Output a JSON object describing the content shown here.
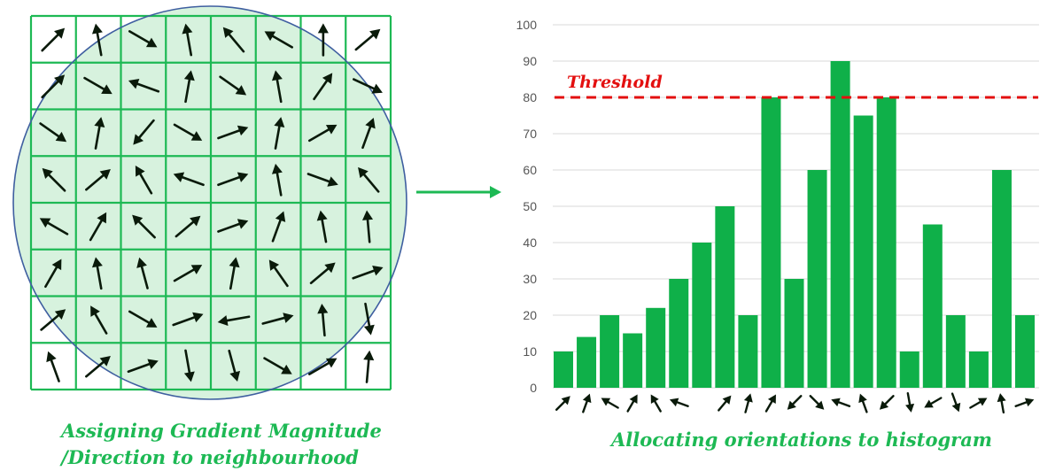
{
  "left_caption_line1": "Assigning Gradient Magnitude",
  "left_caption_line2": "/Direction to neighbourhood",
  "right_caption": "Allocating orientations to histogram",
  "colors": {
    "grid_green": "#1db954",
    "region_fill": "#d7f2de",
    "circle_outline": "#3f5fa0",
    "bar_green": "#0fb049",
    "threshold_red": "#e30f0f",
    "arrow_dark": "#0a1a0a",
    "axis_text": "#555555",
    "gridline": "#d9d9d9"
  },
  "neighbourhood": {
    "rows": 8,
    "cols": 8,
    "arrow_angles_deg": [
      [
        45,
        100,
        -30,
        100,
        130,
        150,
        90,
        40
      ],
      [
        45,
        -30,
        160,
        80,
        -35,
        100,
        55,
        -25
      ],
      [
        -35,
        80,
        230,
        -30,
        20,
        80,
        30,
        70
      ],
      [
        135,
        40,
        120,
        160,
        20,
        100,
        -20,
        130
      ],
      [
        150,
        60,
        135,
        40,
        20,
        70,
        100,
        95
      ],
      [
        60,
        100,
        105,
        30,
        80,
        125,
        40,
        20
      ],
      [
        40,
        120,
        -30,
        20,
        190,
        15,
        95,
        -80
      ],
      [
        110,
        40,
        20,
        -80,
        -75,
        -30,
        30,
        85
      ]
    ]
  },
  "chart_data": {
    "type": "bar",
    "ylim": [
      0,
      100
    ],
    "yticks": [
      0,
      10,
      20,
      30,
      40,
      50,
      60,
      70,
      80,
      90,
      100
    ],
    "values": [
      10,
      14,
      20,
      15,
      22,
      30,
      40,
      50,
      20,
      80,
      30,
      60,
      90,
      75,
      80,
      10,
      45,
      20,
      10,
      60,
      20
    ],
    "orientation_arrows_deg": [
      45,
      70,
      150,
      60,
      120,
      160,
      null,
      50,
      75,
      60,
      225,
      315,
      160,
      110,
      225,
      280,
      210,
      290,
      30,
      100,
      20
    ],
    "threshold": {
      "value": 80,
      "label": "Threshold"
    },
    "grid": true
  }
}
